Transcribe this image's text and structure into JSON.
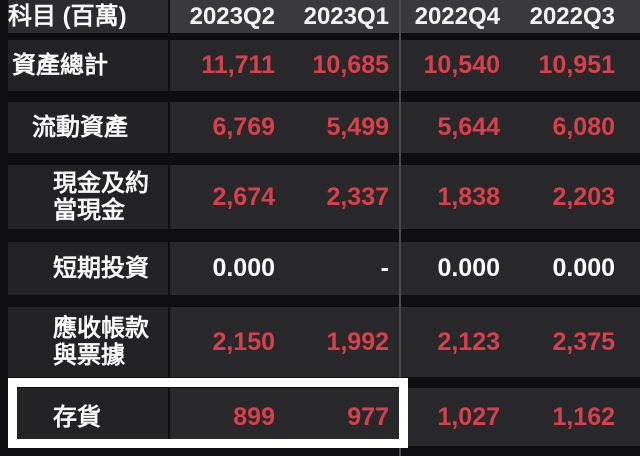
{
  "table": {
    "unit_header": "科目 (百萬)",
    "columns": [
      "2023Q2",
      "2023Q1",
      "2022Q4",
      "2022Q3"
    ],
    "rows": [
      {
        "label": "資產總計",
        "indent": 0,
        "value_color": "red",
        "values": [
          "11,711",
          "10,685",
          "10,540",
          "10,951"
        ]
      },
      {
        "label": "流動資產",
        "indent": 1,
        "value_color": "red",
        "values": [
          "6,769",
          "5,499",
          "5,644",
          "6,080"
        ]
      },
      {
        "label": "現金及約當現金",
        "indent": 2,
        "value_color": "red",
        "values": [
          "2,674",
          "2,337",
          "1,838",
          "2,203"
        ]
      },
      {
        "label": "短期投資",
        "indent": 2,
        "value_color": "white",
        "values": [
          "0.000",
          "-",
          "0.000",
          "0.000"
        ]
      },
      {
        "label": "應收帳款與票據",
        "indent": 2,
        "value_color": "red",
        "values": [
          "2,150",
          "1,992",
          "2,123",
          "2,375"
        ]
      },
      {
        "label": "存貨",
        "indent": 2,
        "value_color": "red",
        "values": [
          "899",
          "977",
          "1,027",
          "1,162"
        ],
        "highlighted": true
      }
    ],
    "highlight": {
      "row_label": "存貨",
      "columns_covered": [
        "2023Q2",
        "2023Q1"
      ],
      "border_color": "#ffffff"
    },
    "colors": {
      "value_red": "#d9404c",
      "value_white": "#fafafa",
      "header_text": "#f5f5f5",
      "row_background": "#29292b",
      "label_background": "#232325",
      "header_background": "#3a3a3c",
      "page_background": "#0f0f11",
      "group_divider": "#4a4a4d"
    }
  }
}
